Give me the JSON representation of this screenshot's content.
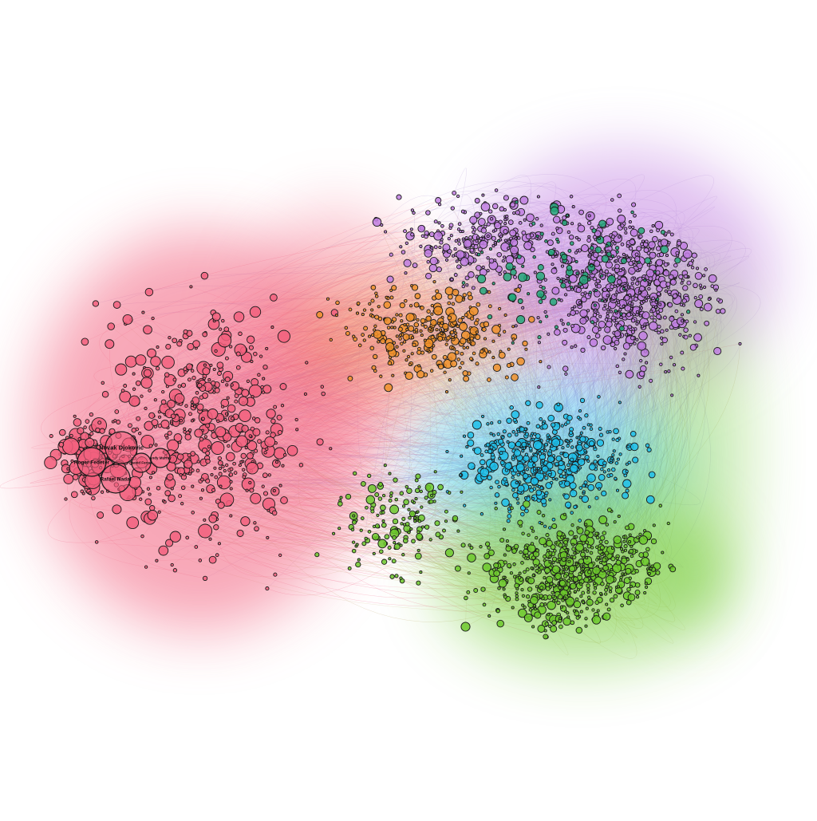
{
  "figure": {
    "type": "network-graph",
    "description_visible": "force-directed player network with colored communities"
  },
  "communities": [
    {
      "id": "pink",
      "color": "#f2607e"
    },
    {
      "id": "purple",
      "color": "#c07ee0"
    },
    {
      "id": "orange",
      "color": "#f0902a"
    },
    {
      "id": "teal",
      "color": "#25a87a"
    },
    {
      "id": "cyan",
      "color": "#1ec0ea"
    },
    {
      "id": "green",
      "color": "#6cc82c"
    }
  ],
  "labeled_nodes": [
    {
      "id": "djokovic",
      "label": "Novak Djokovic",
      "community": "pink"
    },
    {
      "id": "federer",
      "label": "Roger Federer",
      "community": "pink"
    },
    {
      "id": "nadal",
      "label": "Rafael Nadal",
      "community": "pink"
    },
    {
      "id": "ferrer",
      "label": "David Ferrer",
      "community": "pink"
    },
    {
      "id": "murray",
      "label": "Andy Murray",
      "community": "pink"
    }
  ],
  "style": {
    "edge_color": "#e88aa0",
    "node_stroke": "#1a1a1a"
  }
}
